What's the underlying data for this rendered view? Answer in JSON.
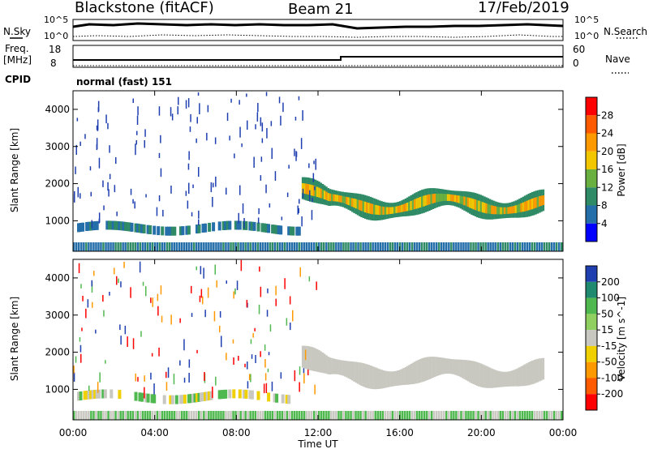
{
  "header": {
    "station": "Blackstone (fitACF)",
    "beam": "Beam 21",
    "date": "17/Feb/2019"
  },
  "top_panels": {
    "nsky_label": "N.Sky",
    "nsearch_label": "N.Search",
    "count_ticks": [
      "10^5",
      "10^0"
    ],
    "freq_label": "Freq.",
    "freq_unit": "[MHz]",
    "freq_ticks": [
      "18",
      "8"
    ],
    "nave_label": "Nave",
    "nave_ticks": [
      "60",
      "0"
    ],
    "cpid_label": "CPID",
    "cpid_value": "normal (fast) 151"
  },
  "chart_data": [
    {
      "type": "heatmap",
      "title": "",
      "xlabel": "Time UT",
      "ylabel": "Slant Range [km]",
      "xlim": [
        "00:00",
        "24:00"
      ],
      "ylim": [
        180,
        4500
      ],
      "x_ticks": [
        "00:00",
        "04:00",
        "08:00",
        "12:00",
        "16:00",
        "20:00",
        "00:00"
      ],
      "y_ticks": [
        1000,
        2000,
        3000,
        4000
      ],
      "colorbar": {
        "label": "Power [dB]",
        "ticks": [
          "28",
          "24",
          "20",
          "16",
          "12",
          "8",
          "4"
        ],
        "colors": [
          "#ff0000",
          "#ff5a00",
          "#ff9900",
          "#f2c700",
          "#69b040",
          "#2f8a66",
          "#246eaa",
          "#0000ff"
        ]
      },
      "features": [
        {
          "name": "scatter band",
          "x_range": [
            "11:00",
            "23:00"
          ],
          "range_km": [
            1100,
            2300
          ],
          "power_db": [
            12,
            28
          ]
        },
        {
          "name": "near-range band",
          "x_range": [
            "00:00",
            "24:00"
          ],
          "range_km": [
            180,
            500
          ],
          "power_db": [
            4,
            28
          ]
        },
        {
          "name": "morning band",
          "x_range": [
            "00:00",
            "11:00"
          ],
          "range_km": [
            600,
            1000
          ],
          "power_db": [
            4,
            16
          ]
        }
      ]
    },
    {
      "type": "heatmap",
      "title": "",
      "xlabel": "Time UT",
      "ylabel": "Slant Range [km]",
      "xlim": [
        "00:00",
        "24:00"
      ],
      "ylim": [
        180,
        4500
      ],
      "x_ticks": [
        "00:00",
        "04:00",
        "08:00",
        "12:00",
        "16:00",
        "20:00",
        "00:00"
      ],
      "y_ticks": [
        1000,
        2000,
        3000,
        4000
      ],
      "colorbar": {
        "label": "Velocity [m s^-1]",
        "ticks": [
          "200",
          "100",
          "50",
          "15",
          "-15",
          "-50",
          "-100",
          "-200"
        ],
        "colors": [
          "#1f3fb0",
          "#1f8a70",
          "#4fb84f",
          "#8fd060",
          "#c8c8c0",
          "#f0d000",
          "#ff9900",
          "#ff5a00",
          "#ff0000"
        ]
      },
      "features": [
        {
          "name": "ground scatter band",
          "x_range": [
            "11:00",
            "23:00"
          ],
          "range_km": [
            1100,
            2300
          ],
          "velocity": [
            -15,
            15
          ]
        },
        {
          "name": "morning band",
          "x_range": [
            "00:00",
            "11:00"
          ],
          "range_km": [
            600,
            1000
          ],
          "velocity": [
            -50,
            50
          ]
        }
      ]
    }
  ]
}
